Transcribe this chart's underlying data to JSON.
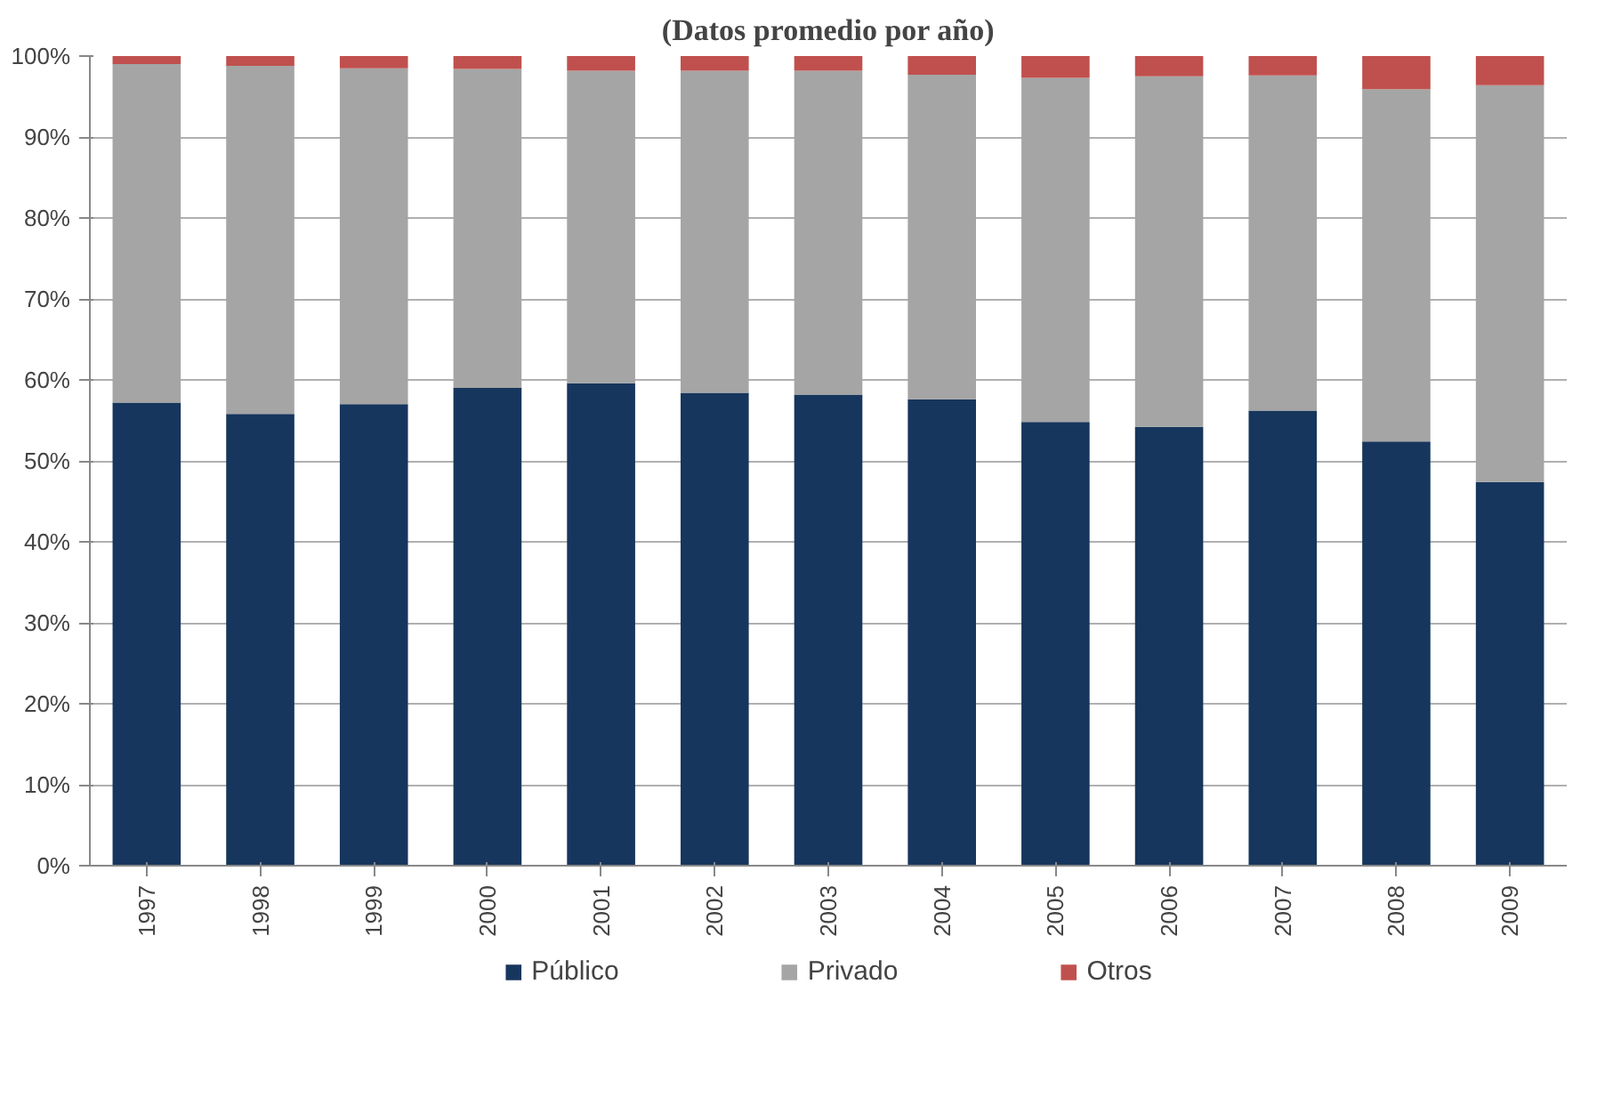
{
  "chart_data": {
    "type": "bar",
    "stacked": true,
    "title": "(Datos promedio por año)",
    "categories": [
      "1997",
      "1998",
      "1999",
      "2000",
      "2001",
      "2002",
      "2003",
      "2004",
      "2005",
      "2006",
      "2007",
      "2008",
      "2009"
    ],
    "series": [
      {
        "name": "Público",
        "color": "#17365d",
        "values": [
          57.2,
          55.8,
          57.0,
          59.0,
          59.6,
          58.4,
          58.2,
          57.6,
          54.8,
          54.2,
          56.2,
          52.4,
          47.4
        ]
      },
      {
        "name": "Privado",
        "color": "#a5a5a5",
        "values": [
          41.8,
          43.0,
          41.5,
          39.4,
          38.6,
          39.8,
          40.0,
          40.1,
          42.5,
          43.3,
          41.4,
          43.5,
          49.0
        ]
      },
      {
        "name": "Otros",
        "color": "#c0504d",
        "values": [
          1.0,
          1.2,
          1.5,
          1.6,
          1.8,
          1.8,
          1.8,
          2.3,
          2.7,
          2.5,
          2.4,
          4.1,
          3.6
        ]
      }
    ],
    "ylim": [
      0,
      100
    ],
    "yticks": [
      {
        "value": 0,
        "label": "0%"
      },
      {
        "value": 10,
        "label": "10%"
      },
      {
        "value": 20,
        "label": "20%"
      },
      {
        "value": 30,
        "label": "30%"
      },
      {
        "value": 40,
        "label": "40%"
      },
      {
        "value": 50,
        "label": "50%"
      },
      {
        "value": 60,
        "label": "60%"
      },
      {
        "value": 70,
        "label": "70%"
      },
      {
        "value": 80,
        "label": "80%"
      },
      {
        "value": 90,
        "label": "90%"
      },
      {
        "value": 100,
        "label": "100%"
      }
    ],
    "grid": "y",
    "legend": "bottom"
  }
}
